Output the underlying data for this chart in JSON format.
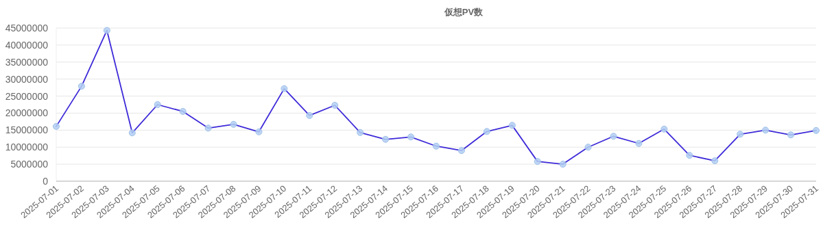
{
  "chart_data": {
    "type": "line",
    "title": "仮想PV数",
    "categories": [
      "2025-07-01",
      "2025-07-02",
      "2025-07-03",
      "2025-07-04",
      "2025-07-05",
      "2025-07-06",
      "2025-07-07",
      "2025-07-08",
      "2025-07-09",
      "2025-07-10",
      "2025-07-11",
      "2025-07-12",
      "2025-07-13",
      "2025-07-14",
      "2025-07-15",
      "2025-07-16",
      "2025-07-17",
      "2025-07-18",
      "2025-07-19",
      "2025-07-20",
      "2025-07-21",
      "2025-07-22",
      "2025-07-23",
      "2025-07-24",
      "2025-07-25",
      "2025-07-26",
      "2025-07-27",
      "2025-07-28",
      "2025-07-29",
      "2025-07-30",
      "2025-07-31"
    ],
    "series": [
      {
        "color": "#3d2ad8",
        "values": [
          16100000,
          27900000,
          44300000,
          14200000,
          22500000,
          20500000,
          15600000,
          16700000,
          14500000,
          27200000,
          19300000,
          22300000,
          14300000,
          12300000,
          13000000,
          10300000,
          9000000,
          14600000,
          16400000,
          5800000,
          5000000,
          10000000,
          13200000,
          11100000,
          15300000,
          7600000,
          6000000,
          13800000,
          15000000,
          13600000,
          14900000
        ]
      }
    ],
    "ylim": [
      0,
      45000000
    ],
    "yticks": [
      0,
      5000000,
      10000000,
      15000000,
      20000000,
      25000000,
      30000000,
      35000000,
      40000000,
      45000000
    ],
    "grid": "y",
    "marker": "circle",
    "line_style": "solid"
  }
}
